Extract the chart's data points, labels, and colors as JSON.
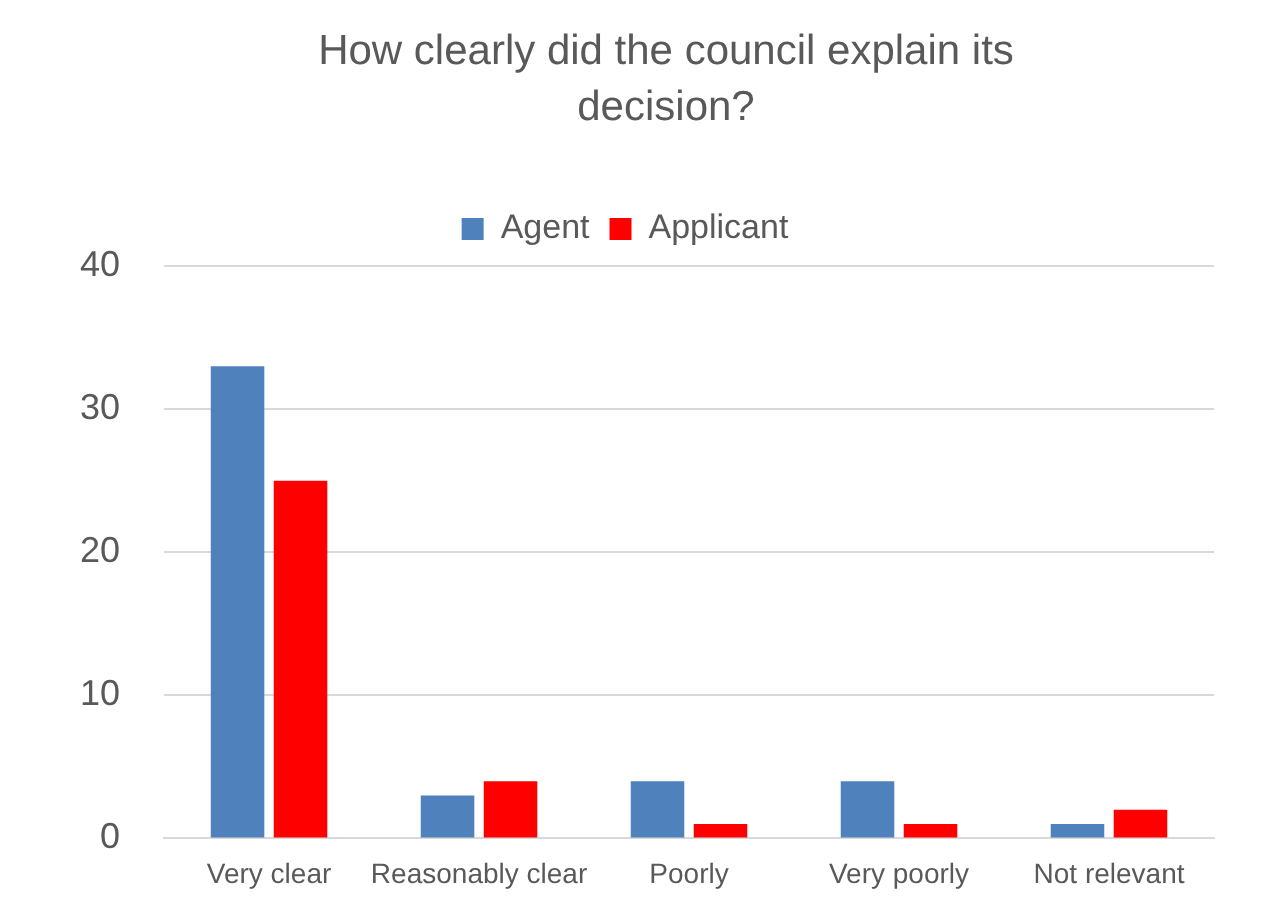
{
  "chart_data": {
    "type": "bar",
    "title": "How clearly did the council explain its decision?",
    "categories": [
      "Very clear",
      "Reasonably clear",
      "Poorly",
      "Very poorly",
      "Not relevant"
    ],
    "series": [
      {
        "name": "Agent",
        "color": "#4f81bd",
        "values": [
          33,
          3,
          4,
          4,
          1
        ]
      },
      {
        "name": "Applicant",
        "color": "#ff0000",
        "values": [
          25,
          4,
          1,
          1,
          2
        ]
      }
    ],
    "ylim": [
      0,
      40
    ],
    "yticks": [
      0,
      10,
      20,
      30,
      40
    ],
    "grid": "y",
    "legend": "top"
  }
}
